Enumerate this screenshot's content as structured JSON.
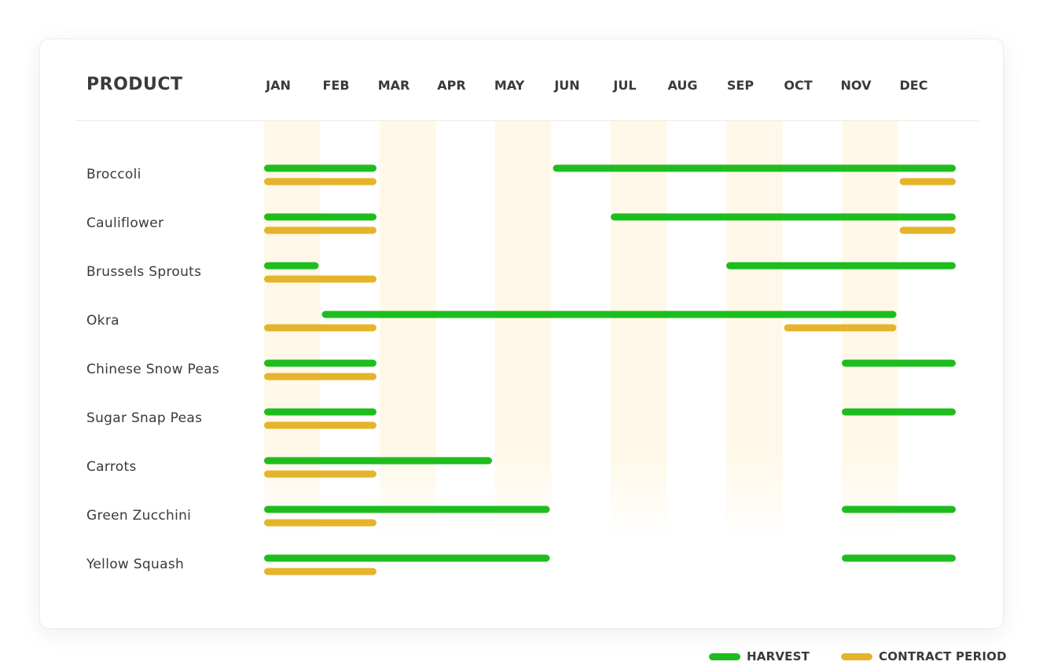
{
  "chart_data": {
    "type": "table",
    "header": {
      "product_label": "PRODUCT"
    },
    "months": [
      "JAN",
      "FEB",
      "MAR",
      "APR",
      "MAY",
      "JUN",
      "JUL",
      "AUG",
      "SEP",
      "OCT",
      "NOV",
      "DEC"
    ],
    "shaded_months": [
      "JAN",
      "MAR",
      "MAY",
      "JUL",
      "SEP",
      "NOV"
    ],
    "series": [
      {
        "name": "HARVEST",
        "color": "#1ebd1e"
      },
      {
        "name": "CONTRACT PERIOD",
        "color": "#e5b42a"
      }
    ],
    "products": [
      {
        "name": "Broccoli",
        "harvest": [
          [
            1,
            2
          ],
          [
            6,
            12
          ]
        ],
        "contract": [
          [
            1,
            2
          ],
          [
            12,
            12
          ]
        ]
      },
      {
        "name": "Cauliflower",
        "harvest": [
          [
            1,
            2
          ],
          [
            7,
            12
          ]
        ],
        "contract": [
          [
            1,
            2
          ],
          [
            12,
            12
          ]
        ]
      },
      {
        "name": "Brussels Sprouts",
        "harvest": [
          [
            1,
            1
          ],
          [
            9,
            12
          ]
        ],
        "contract": [
          [
            1,
            2
          ]
        ]
      },
      {
        "name": "Okra",
        "harvest": [
          [
            2,
            11
          ]
        ],
        "contract": [
          [
            1,
            2
          ],
          [
            10,
            11
          ]
        ]
      },
      {
        "name": "Chinese Snow Peas",
        "harvest": [
          [
            1,
            2
          ],
          [
            11,
            12
          ]
        ],
        "contract": [
          [
            1,
            2
          ]
        ]
      },
      {
        "name": "Sugar Snap Peas",
        "harvest": [
          [
            1,
            2
          ],
          [
            11,
            12
          ]
        ],
        "contract": [
          [
            1,
            2
          ]
        ]
      },
      {
        "name": "Carrots",
        "harvest": [
          [
            1,
            4
          ]
        ],
        "contract": [
          [
            1,
            2
          ]
        ]
      },
      {
        "name": "Green Zucchini",
        "harvest": [
          [
            1,
            5
          ],
          [
            11,
            12
          ]
        ],
        "contract": [
          [
            1,
            2
          ]
        ]
      },
      {
        "name": "Yellow Squash",
        "harvest": [
          [
            1,
            5
          ],
          [
            11,
            12
          ]
        ],
        "contract": [
          [
            1,
            2
          ]
        ]
      }
    ]
  },
  "legend": {
    "harvest_label": "HARVEST",
    "contract_label": "CONTRACT PERIOD"
  }
}
